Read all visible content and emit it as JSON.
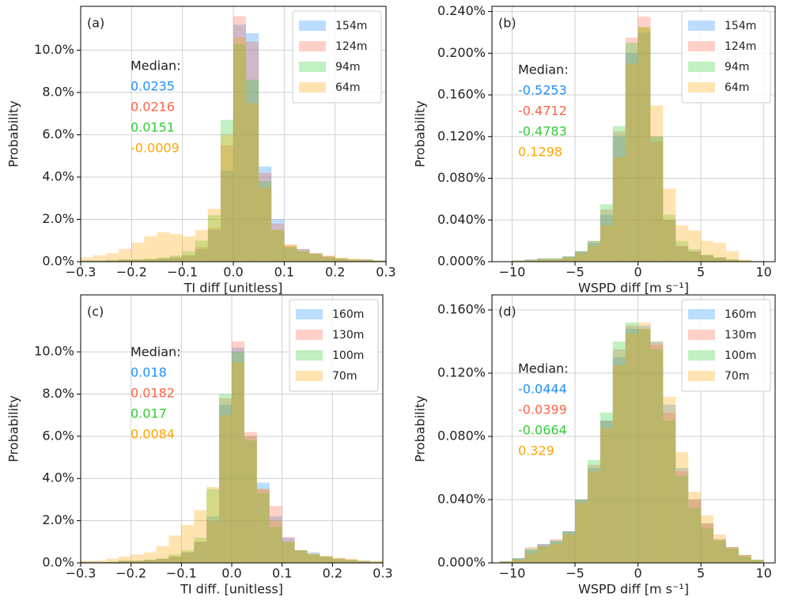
{
  "chart_data": [
    {
      "type": "histogram",
      "panel_label": "(a)",
      "xlabel": "TI diff [unitless]",
      "ylabel": "Probability",
      "grid": true,
      "legend": "upper right",
      "bins": [
        -0.3,
        -0.275,
        -0.25,
        -0.225,
        -0.2,
        -0.175,
        -0.15,
        -0.125,
        -0.1,
        -0.075,
        -0.05,
        -0.025,
        0,
        0.025,
        0.05,
        0.075,
        0.1,
        0.125,
        0.15,
        0.175,
        0.2,
        0.225,
        0.25,
        0.275,
        0.3
      ],
      "series": [
        {
          "name": "154m",
          "color": "#1e90ff",
          "values": [
            0.05,
            0.05,
            0.05,
            0.1,
            0.1,
            0.1,
            0.15,
            0.2,
            0.3,
            0.6,
            1.5,
            4.3,
            11.2,
            10.8,
            4.5,
            2.0,
            0.7,
            0.6,
            0.4,
            0.25,
            0.15,
            0.1,
            0.1,
            0.05
          ]
        },
        {
          "name": "124m",
          "color": "#ff6347",
          "values": [
            0.05,
            0.05,
            0.05,
            0.1,
            0.1,
            0.1,
            0.15,
            0.2,
            0.3,
            0.7,
            1.6,
            5.5,
            11.6,
            10.4,
            4.2,
            1.8,
            0.8,
            0.6,
            0.4,
            0.25,
            0.15,
            0.1,
            0.1,
            0.05
          ]
        },
        {
          "name": "94m",
          "color": "#32cd32",
          "values": [
            0.05,
            0.05,
            0.1,
            0.1,
            0.1,
            0.15,
            0.2,
            0.3,
            0.5,
            1.0,
            2.2,
            6.7,
            10.3,
            8.6,
            3.8,
            1.5,
            0.7,
            0.5,
            0.35,
            0.2,
            0.15,
            0.1,
            0.1,
            0.05
          ]
        },
        {
          "name": "64m",
          "color": "#ffa500",
          "values": [
            0.2,
            0.3,
            0.4,
            0.6,
            0.9,
            1.2,
            1.4,
            1.3,
            1.2,
            1.5,
            2.5,
            6.0,
            10.6,
            7.5,
            3.5,
            1.5,
            0.8,
            0.5,
            0.4,
            0.3,
            0.2,
            0.15,
            0.1,
            0.05
          ]
        }
      ],
      "annotation_title": "Median:",
      "medians": [
        "0.0235",
        "0.0216",
        "0.0151",
        "-0.0009"
      ],
      "xlim": [
        -0.3,
        0.3
      ],
      "ylim": [
        0,
        12.07
      ],
      "xticks": [
        {
          "value": -0.3,
          "label": "−0.3"
        },
        {
          "value": -0.2,
          "label": "−0.2"
        },
        {
          "value": -0.1,
          "label": "−0.1"
        },
        {
          "value": 0,
          "label": "0.0"
        },
        0.1,
        0.2,
        0.3
      ],
      "yticks": [
        {
          "value": 0,
          "label": "0.0%"
        },
        {
          "value": 2,
          "label": "2.0%"
        },
        {
          "value": 4,
          "label": "4.0%"
        },
        {
          "value": 6,
          "label": "6.0%"
        },
        {
          "value": 8,
          "label": "8.0%"
        },
        {
          "value": 10,
          "label": "10.0%"
        }
      ]
    },
    {
      "type": "histogram",
      "panel_label": "(b)",
      "xlabel": "WSPD diff [m s⁻¹]",
      "ylabel": "Probability",
      "grid": true,
      "legend": "upper right",
      "bins": [
        -11,
        -10,
        -9,
        -8,
        -7,
        -6,
        -5,
        -4,
        -3,
        -2,
        -1,
        0,
        1,
        2,
        3,
        4,
        5,
        6,
        7,
        8,
        9,
        10
      ],
      "series": [
        {
          "name": "154m",
          "color": "#1e90ff",
          "values": [
            0,
            0.001,
            0.002,
            0.003,
            0.003,
            0.005,
            0.01,
            0.018,
            0.045,
            0.12,
            0.2,
            0.22,
            0.12,
            0.04,
            0.015,
            0.01,
            0.006,
            0.004,
            0.002,
            0.001,
            0.0005
          ]
        },
        {
          "name": "124m",
          "color": "#ff6347",
          "values": [
            0,
            0.001,
            0.002,
            0.003,
            0.003,
            0.005,
            0.01,
            0.02,
            0.05,
            0.125,
            0.215,
            0.235,
            0.115,
            0.04,
            0.015,
            0.01,
            0.006,
            0.004,
            0.002,
            0.001,
            0.0005
          ]
        },
        {
          "name": "94m",
          "color": "#32cd32",
          "values": [
            0,
            0.001,
            0.002,
            0.003,
            0.003,
            0.005,
            0.01,
            0.02,
            0.055,
            0.13,
            0.21,
            0.225,
            0.12,
            0.045,
            0.02,
            0.012,
            0.007,
            0.004,
            0.002,
            0.001,
            0.0005
          ]
        },
        {
          "name": "64m",
          "color": "#ffa500",
          "values": [
            0,
            0.001,
            0.001,
            0.002,
            0.002,
            0.004,
            0.008,
            0.015,
            0.035,
            0.1,
            0.19,
            0.225,
            0.15,
            0.07,
            0.035,
            0.03,
            0.02,
            0.018,
            0.01,
            0.002,
            0.0005
          ]
        }
      ],
      "annotation_title": "Median:",
      "medians": [
        "-0.5253",
        "-0.4712",
        "-0.4783",
        "0.1298"
      ],
      "xlim": [
        -11.6,
        10.9
      ],
      "ylim": [
        0,
        0.245
      ],
      "xticks": [
        {
          "value": -10,
          "label": "−10"
        },
        {
          "value": -5,
          "label": "−5"
        },
        0,
        5,
        10
      ],
      "yticks": [
        {
          "value": 0,
          "label": "0.000%"
        },
        {
          "value": 0.04,
          "label": "0.040%"
        },
        {
          "value": 0.08,
          "label": "0.080%"
        },
        {
          "value": 0.12,
          "label": "0.120%"
        },
        {
          "value": 0.16,
          "label": "0.160%"
        },
        {
          "value": 0.2,
          "label": "0.200%"
        },
        {
          "value": 0.24,
          "label": "0.240%"
        }
      ]
    },
    {
      "type": "histogram",
      "panel_label": "(c)",
      "xlabel": "TI diff. [unitless]",
      "ylabel": "Probability",
      "grid": true,
      "legend": "upper right",
      "bins": [
        -0.3,
        -0.275,
        -0.25,
        -0.225,
        -0.2,
        -0.175,
        -0.15,
        -0.125,
        -0.1,
        -0.075,
        -0.05,
        -0.025,
        0,
        0.025,
        0.05,
        0.075,
        0.1,
        0.125,
        0.15,
        0.175,
        0.2,
        0.225,
        0.25,
        0.275,
        0.3
      ],
      "series": [
        {
          "name": "160m",
          "color": "#1e90ff",
          "values": [
            0.05,
            0.05,
            0.05,
            0.1,
            0.1,
            0.15,
            0.2,
            0.3,
            0.5,
            1.0,
            2.2,
            7.5,
            10.2,
            6.0,
            3.8,
            2.2,
            1.2,
            0.6,
            0.5,
            0.3,
            0.2,
            0.15,
            0.1,
            0.05
          ]
        },
        {
          "name": "130m",
          "color": "#ff6347",
          "values": [
            0.05,
            0.05,
            0.05,
            0.1,
            0.1,
            0.15,
            0.2,
            0.3,
            0.5,
            1.0,
            2.0,
            7.8,
            10.5,
            6.2,
            3.5,
            2.7,
            1.2,
            0.6,
            0.4,
            0.3,
            0.2,
            0.15,
            0.1,
            0.05
          ]
        },
        {
          "name": "100m",
          "color": "#32cd32",
          "values": [
            0.05,
            0.05,
            0.05,
            0.1,
            0.1,
            0.15,
            0.2,
            0.4,
            0.6,
            1.2,
            3.5,
            8.0,
            10.0,
            5.8,
            3.3,
            1.7,
            1.0,
            0.6,
            0.4,
            0.3,
            0.2,
            0.15,
            0.1,
            0.05
          ]
        },
        {
          "name": "70m",
          "color": "#ffa500",
          "values": [
            0.1,
            0.1,
            0.2,
            0.3,
            0.4,
            0.5,
            0.8,
            1.3,
            1.8,
            2.5,
            3.6,
            7.0,
            9.5,
            6.0,
            3.5,
            2.0,
            1.0,
            0.6,
            0.45,
            0.35,
            0.25,
            0.2,
            0.1,
            0.1
          ]
        }
      ],
      "annotation_title": "Median:",
      "medians": [
        "0.018",
        "0.0182",
        "0.017",
        "0.0084"
      ],
      "xlim": [
        -0.3,
        0.3
      ],
      "ylim": [
        0,
        12.7
      ],
      "xticks": [
        {
          "value": -0.3,
          "label": "−0.3"
        },
        {
          "value": -0.2,
          "label": "−0.2"
        },
        {
          "value": -0.1,
          "label": "−0.1"
        },
        {
          "value": 0,
          "label": "0.0"
        },
        0.1,
        0.2,
        0.3
      ],
      "yticks": [
        {
          "value": 0,
          "label": "0.0%"
        },
        {
          "value": 2,
          "label": "2.0%"
        },
        {
          "value": 4,
          "label": "4.0%"
        },
        {
          "value": 6,
          "label": "6.0%"
        },
        {
          "value": 8,
          "label": "8.0%"
        },
        {
          "value": 10,
          "label": "10.0%"
        }
      ]
    },
    {
      "type": "histogram",
      "panel_label": "(d)",
      "xlabel": "WSPD diff [m s⁻¹]",
      "ylabel": "Probability",
      "grid": true,
      "legend": "upper right",
      "bins": [
        -11,
        -10,
        -9,
        -8,
        -7,
        -6,
        -5,
        -4,
        -3,
        -2,
        -1,
        0,
        1,
        2,
        3,
        4,
        5,
        6,
        7,
        8,
        9,
        10
      ],
      "series": [
        {
          "name": "160m",
          "color": "#1e90ff",
          "values": [
            0.001,
            0.003,
            0.008,
            0.012,
            0.014,
            0.02,
            0.04,
            0.06,
            0.09,
            0.13,
            0.148,
            0.15,
            0.14,
            0.1,
            0.06,
            0.04,
            0.025,
            0.015,
            0.01,
            0.005,
            0.002
          ]
        },
        {
          "name": "130m",
          "color": "#ff6347",
          "values": [
            0.001,
            0.003,
            0.01,
            0.012,
            0.015,
            0.02,
            0.04,
            0.062,
            0.09,
            0.135,
            0.15,
            0.148,
            0.138,
            0.095,
            0.058,
            0.04,
            0.025,
            0.015,
            0.01,
            0.005,
            0.002
          ]
        },
        {
          "name": "100m",
          "color": "#32cd32",
          "values": [
            0.001,
            0.003,
            0.009,
            0.011,
            0.014,
            0.02,
            0.04,
            0.065,
            0.095,
            0.14,
            0.152,
            0.148,
            0.135,
            0.09,
            0.055,
            0.035,
            0.022,
            0.014,
            0.009,
            0.004,
            0.002
          ]
        },
        {
          "name": "70m",
          "color": "#ffa500",
          "values": [
            0.001,
            0.002,
            0.006,
            0.01,
            0.012,
            0.018,
            0.038,
            0.058,
            0.085,
            0.125,
            0.145,
            0.152,
            0.14,
            0.105,
            0.07,
            0.045,
            0.03,
            0.018,
            0.01,
            0.005,
            0.002
          ]
        }
      ],
      "annotation_title": "Median:",
      "medians": [
        "-0.0444",
        "-0.0399",
        "-0.0664",
        "0.329"
      ],
      "xlim": [
        -11.6,
        10.9
      ],
      "ylim": [
        0,
        0.1695
      ],
      "xticks": [
        {
          "value": -10,
          "label": "−10"
        },
        {
          "value": -5,
          "label": "−5"
        },
        0,
        5,
        10
      ],
      "yticks": [
        {
          "value": 0,
          "label": "0.000%"
        },
        {
          "value": 0.04,
          "label": "0.040%"
        },
        {
          "value": 0.08,
          "label": "0.080%"
        },
        {
          "value": 0.12,
          "label": "0.120%"
        },
        {
          "value": 0.16,
          "label": "0.160%"
        }
      ]
    }
  ]
}
